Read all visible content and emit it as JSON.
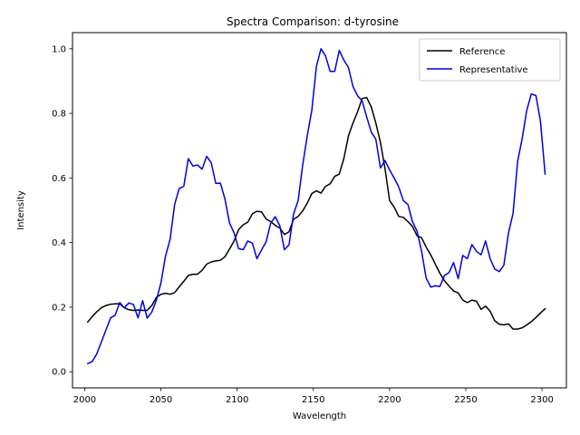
{
  "chart_data": {
    "type": "line",
    "title": "Spectra Comparison: d-tyrosine",
    "xlabel": "Wavelength",
    "ylabel": "Intensity",
    "xlim": [
      1992,
      2316
    ],
    "ylim": [
      -0.05,
      1.05
    ],
    "xticks": [
      2000,
      2050,
      2100,
      2150,
      2200,
      2250,
      2300
    ],
    "yticks": [
      0.0,
      0.2,
      0.4,
      0.6,
      0.8,
      1.0
    ],
    "xtick_labels": [
      "2000",
      "2050",
      "2100",
      "2150",
      "2200",
      "2250",
      "2300"
    ],
    "ytick_labels": [
      "0.0",
      "0.2",
      "0.4",
      "0.6",
      "0.8",
      "1.0"
    ],
    "grid": false,
    "legend_position": "top-right",
    "series": [
      {
        "name": "Reference",
        "color": "#000000",
        "x": [
          2002,
          2005,
          2008,
          2011,
          2014,
          2017,
          2020,
          2023,
          2026,
          2029,
          2032,
          2035,
          2038,
          2041,
          2044,
          2047,
          2050,
          2053,
          2056,
          2059,
          2062,
          2065,
          2068,
          2071,
          2074,
          2077,
          2080,
          2083,
          2086,
          2089,
          2092,
          2095,
          2098,
          2101,
          2104,
          2107,
          2110,
          2113,
          2116,
          2119,
          2122,
          2125,
          2128,
          2131,
          2134,
          2137,
          2140,
          2143,
          2146,
          2149,
          2152,
          2155,
          2158,
          2161,
          2164,
          2167,
          2170,
          2173,
          2176,
          2179,
          2182,
          2185,
          2188,
          2191,
          2194,
          2197,
          2200,
          2203,
          2206,
          2209,
          2212,
          2215,
          2218,
          2221,
          2224,
          2227,
          2230,
          2233,
          2236,
          2239,
          2242,
          2245,
          2248,
          2251,
          2254,
          2257,
          2260,
          2263,
          2266,
          2269,
          2272,
          2275,
          2278,
          2281,
          2284,
          2287,
          2290,
          2293,
          2296,
          2299,
          2302
        ],
        "y": [
          0.154,
          0.171,
          0.186,
          0.198,
          0.205,
          0.209,
          0.21,
          0.21,
          0.198,
          0.192,
          0.19,
          0.191,
          0.19,
          0.19,
          0.205,
          0.23,
          0.24,
          0.243,
          0.24,
          0.245,
          0.263,
          0.28,
          0.298,
          0.302,
          0.302,
          0.314,
          0.333,
          0.34,
          0.343,
          0.345,
          0.356,
          0.38,
          0.405,
          0.44,
          0.455,
          0.463,
          0.489,
          0.497,
          0.495,
          0.473,
          0.465,
          0.453,
          0.445,
          0.425,
          0.433,
          0.472,
          0.481,
          0.498,
          0.522,
          0.552,
          0.56,
          0.553,
          0.574,
          0.582,
          0.605,
          0.612,
          0.66,
          0.73,
          0.77,
          0.805,
          0.846,
          0.849,
          0.82,
          0.77,
          0.71,
          0.63,
          0.53,
          0.51,
          0.481,
          0.478,
          0.465,
          0.45,
          0.421,
          0.415,
          0.386,
          0.362,
          0.333,
          0.305,
          0.282,
          0.265,
          0.25,
          0.244,
          0.222,
          0.214,
          0.222,
          0.218,
          0.193,
          0.203,
          0.187,
          0.158,
          0.147,
          0.145,
          0.148,
          0.132,
          0.132,
          0.136,
          0.145,
          0.155,
          0.168,
          0.182,
          0.195
        ]
      },
      {
        "name": "Representative",
        "color": "#0000dd",
        "x": [
          2002,
          2005,
          2008,
          2011,
          2014,
          2017,
          2020,
          2023,
          2026,
          2029,
          2032,
          2035,
          2038,
          2041,
          2044,
          2047,
          2050,
          2053,
          2056,
          2059,
          2062,
          2065,
          2068,
          2071,
          2074,
          2077,
          2080,
          2083,
          2086,
          2089,
          2092,
          2095,
          2098,
          2101,
          2104,
          2107,
          2110,
          2113,
          2116,
          2119,
          2122,
          2125,
          2128,
          2131,
          2134,
          2137,
          2140,
          2143,
          2146,
          2149,
          2152,
          2155,
          2158,
          2161,
          2164,
          2167,
          2170,
          2173,
          2176,
          2179,
          2182,
          2185,
          2188,
          2191,
          2194,
          2197,
          2200,
          2203,
          2206,
          2209,
          2212,
          2215,
          2218,
          2221,
          2224,
          2227,
          2230,
          2233,
          2236,
          2239,
          2242,
          2245,
          2248,
          2251,
          2254,
          2257,
          2260,
          2263,
          2266,
          2269,
          2272,
          2275,
          2278,
          2281,
          2284,
          2287,
          2290,
          2293,
          2296,
          2299,
          2302
        ],
        "y": [
          0.025,
          0.032,
          0.056,
          0.093,
          0.13,
          0.167,
          0.175,
          0.214,
          0.198,
          0.213,
          0.208,
          0.167,
          0.22,
          0.166,
          0.185,
          0.221,
          0.275,
          0.358,
          0.41,
          0.518,
          0.567,
          0.574,
          0.66,
          0.637,
          0.64,
          0.627,
          0.667,
          0.647,
          0.583,
          0.584,
          0.535,
          0.46,
          0.43,
          0.381,
          0.378,
          0.405,
          0.398,
          0.35,
          0.377,
          0.402,
          0.46,
          0.48,
          0.452,
          0.378,
          0.393,
          0.488,
          0.53,
          0.64,
          0.73,
          0.81,
          0.945,
          1.0,
          0.978,
          0.93,
          0.93,
          0.995,
          0.965,
          0.942,
          0.883,
          0.854,
          0.839,
          0.789,
          0.742,
          0.72,
          0.631,
          0.654,
          0.625,
          0.6,
          0.572,
          0.53,
          0.518,
          0.465,
          0.435,
          0.373,
          0.29,
          0.262,
          0.266,
          0.264,
          0.298,
          0.307,
          0.338,
          0.288,
          0.36,
          0.35,
          0.394,
          0.373,
          0.362,
          0.405,
          0.35,
          0.318,
          0.31,
          0.33,
          0.43,
          0.49,
          0.652,
          0.722,
          0.81,
          0.86,
          0.855,
          0.775,
          0.612
        ]
      }
    ]
  }
}
